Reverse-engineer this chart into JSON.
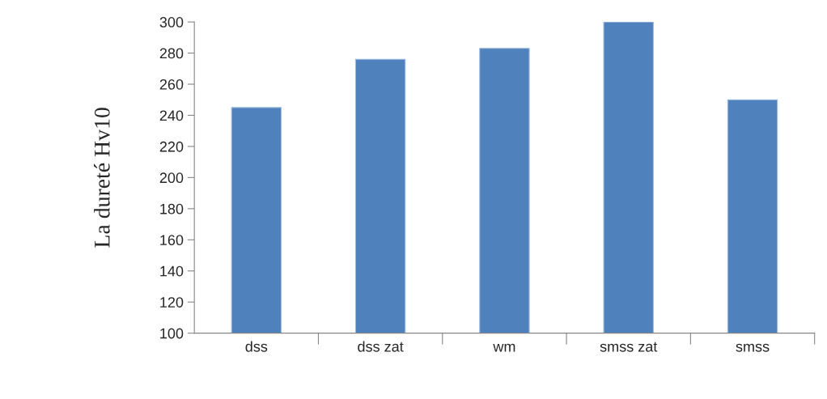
{
  "chart_data": {
    "type": "bar",
    "ylabel": "La dureté Hv10",
    "categories": [
      "dss",
      "dss zat",
      "wm",
      "smss zat",
      "smss"
    ],
    "values": [
      245,
      276,
      283,
      300,
      250
    ],
    "color": "#4f81bd",
    "ylim": [
      100,
      300
    ],
    "yticks": [
      100,
      120,
      140,
      160,
      180,
      200,
      220,
      240,
      260,
      280,
      300
    ],
    "grid": false
  }
}
